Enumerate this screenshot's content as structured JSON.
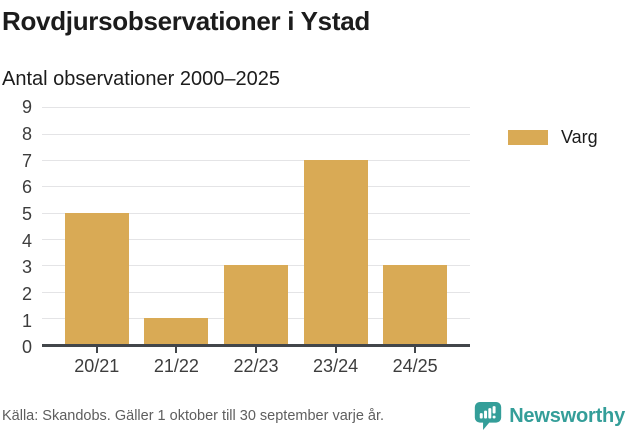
{
  "title": "Rovdjursobservationer i Ystad",
  "subtitle": "Antal observationer 2000–2025",
  "legend": {
    "items": [
      {
        "label": "Varg",
        "color": "#D9AA55"
      }
    ]
  },
  "footer": {
    "source": "Källa: Skandobs. Gäller 1 oktober till 30 september varje år.",
    "brand": "Newsworthy"
  },
  "icons": {
    "brand_logo": "newsworthy-speech-bubble-bar-chart-icon"
  },
  "colors": {
    "bar": "#D9AA55",
    "grid": "#E4E4E6",
    "axis": "#42464A",
    "tick_label": "#3D3D3D",
    "title": "#1C1C1C",
    "muted": "#5E5E5E",
    "teal": "#349E99",
    "background": "#FFFFFF"
  },
  "chart_data": {
    "type": "bar",
    "categories": [
      "20/21",
      "21/22",
      "22/23",
      "23/24",
      "24/25"
    ],
    "series": [
      {
        "name": "Varg",
        "values": [
          5,
          1,
          3,
          7,
          3
        ]
      }
    ],
    "title": "Rovdjursobservationer i Ystad",
    "subtitle": "Antal observationer 2000–2025",
    "xlabel": "",
    "ylabel": "",
    "ylim": [
      0,
      9
    ],
    "yticks": [
      0,
      1,
      2,
      3,
      4,
      5,
      6,
      7,
      8,
      9
    ],
    "grid": true,
    "legend_position": "right",
    "bar_color": "#D9AA55"
  }
}
